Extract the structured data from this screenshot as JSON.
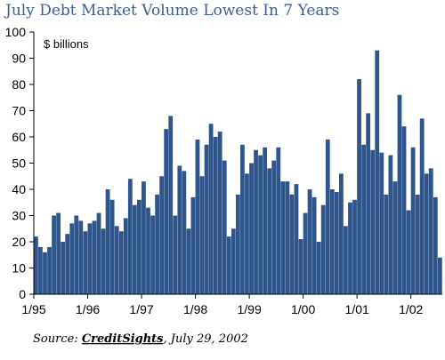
{
  "title": "July Debt Market Volume Lowest In 7 Years",
  "source": {
    "prefix": "Source: ",
    "brand": "CreditSights",
    "suffix": ", July 29, 2002"
  },
  "colors": {
    "bar": "#2f568c",
    "title": "#3b5f94",
    "axis": "#000000"
  },
  "chart_data": {
    "type": "bar",
    "title": "July Debt Market Volume Lowest In 7 Years",
    "unit_label": "$ billions",
    "xlabel": "",
    "ylabel": "",
    "ylim": [
      0,
      100
    ],
    "y_ticks": [
      0,
      10,
      20,
      30,
      40,
      50,
      60,
      70,
      80,
      90,
      100
    ],
    "x_tick_labels": [
      "1/95",
      "1/96",
      "1/97",
      "1/98",
      "1/99",
      "1/00",
      "1/01",
      "1/02"
    ],
    "grid": false,
    "start_month": "1/95",
    "end_month": "7/02",
    "values": [
      22,
      18,
      16,
      18,
      30,
      31,
      20,
      23,
      27,
      30,
      28,
      24,
      27,
      28,
      31,
      25,
      40,
      36,
      26,
      24,
      29,
      44,
      34,
      36,
      43,
      33,
      30,
      38,
      45,
      63,
      68,
      30,
      49,
      47,
      25,
      37,
      59,
      45,
      57,
      65,
      60,
      62,
      51,
      22,
      25,
      38,
      57,
      46,
      50,
      55,
      53,
      56,
      48,
      51,
      56,
      43,
      43,
      38,
      42,
      21,
      31,
      40,
      37,
      20,
      34,
      59,
      40,
      39,
      46,
      26,
      35,
      36,
      82,
      57,
      69,
      55,
      93,
      54,
      38,
      53,
      43,
      76,
      64,
      32,
      56,
      38,
      67,
      46,
      48,
      37,
      14
    ]
  }
}
